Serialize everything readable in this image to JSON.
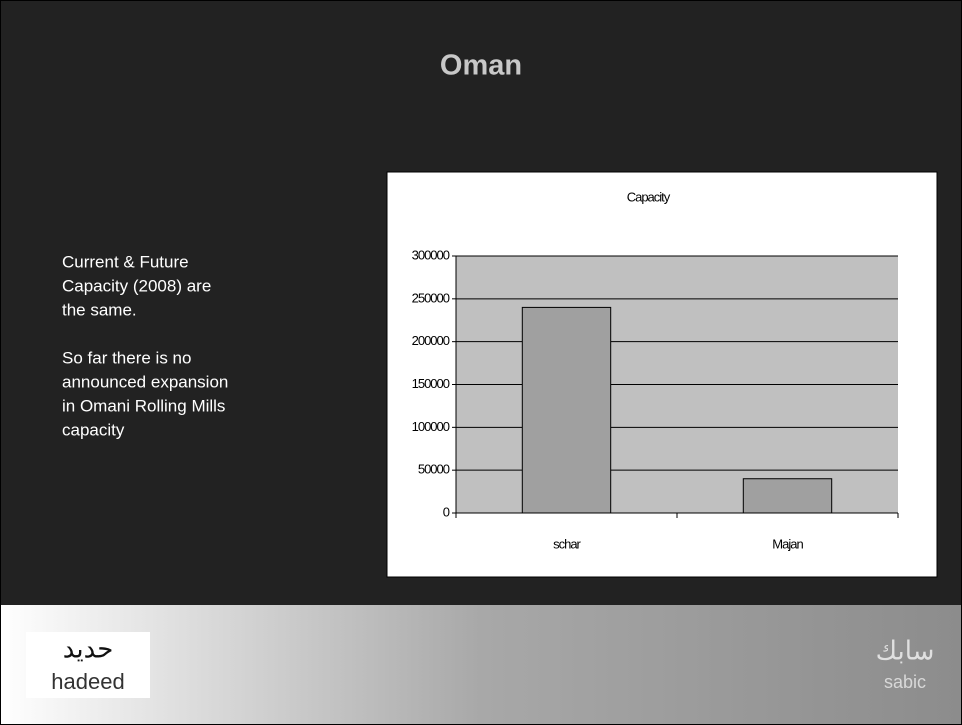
{
  "slide": {
    "title": "Oman",
    "body": [
      [
        "Current & Future",
        "Capacity (2008) are",
        "the same."
      ],
      [
        "So far there is no",
        "announced expansion",
        "in Omani Rolling Mills",
        "capacity"
      ]
    ]
  },
  "chart_data": {
    "type": "bar",
    "title": "Capacity",
    "categories": [
      "schar",
      "Majan"
    ],
    "values": [
      240000,
      40000
    ],
    "color": "#a0a0a0",
    "ylim": [
      0,
      300000
    ],
    "yticks": [
      0,
      50000,
      100000,
      150000,
      200000,
      250000,
      300000
    ],
    "grid": true
  },
  "logos": {
    "left": [
      "حديد",
      "hadeed"
    ],
    "right": [
      "سابك",
      "sabic"
    ]
  }
}
